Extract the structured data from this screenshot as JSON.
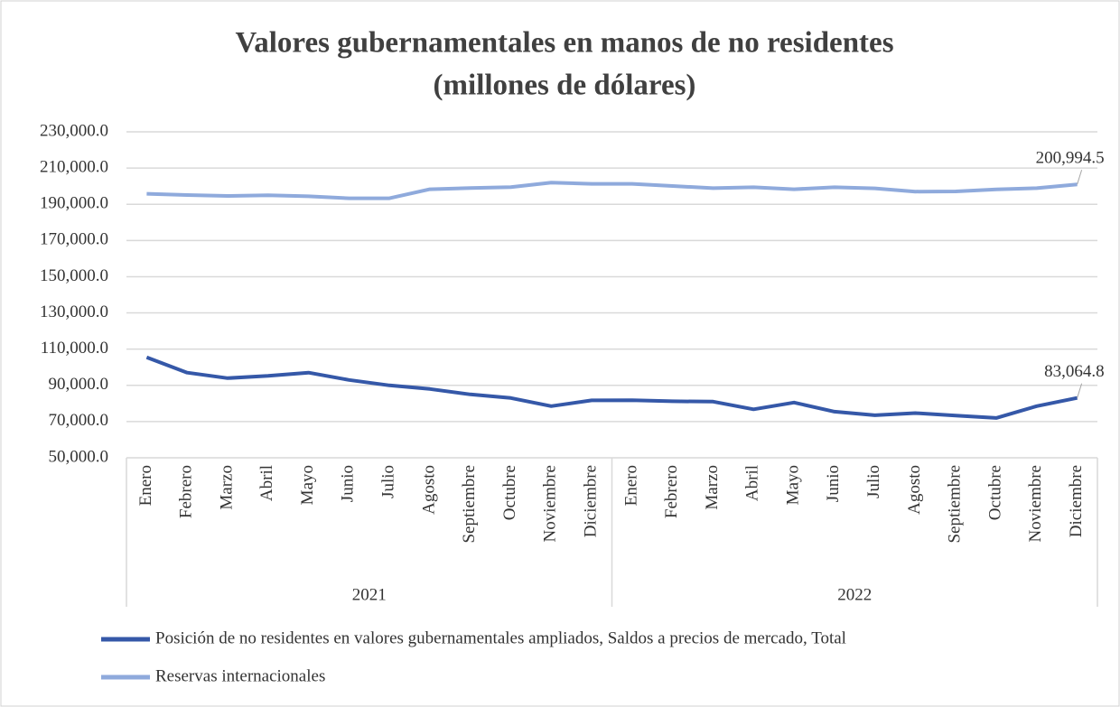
{
  "chart_data": {
    "type": "line",
    "title": "Valores gubernamentales en manos de no residentes",
    "subtitle": "(millones de dólares)",
    "categories": [
      "Enero",
      "Febrero",
      "Marzo",
      "Abril",
      "Mayo",
      "Junio",
      "Julio",
      "Agosto",
      "Septiembre",
      "Octubre",
      "Noviembre",
      "Diciembre",
      "Enero",
      "Febrero",
      "Marzo",
      "Abril",
      "Mayo",
      "Junio",
      "Julio",
      "Agosto",
      "Septiembre",
      "Octubre",
      "Noviembre",
      "Diciembre"
    ],
    "category_groups": [
      "2021",
      "2022"
    ],
    "series": [
      {
        "name": "Posición de no residentes en valores gubernamentales ampliados, Saldos a precios de mercado, Total",
        "color": "#3558a8",
        "values": [
          105500,
          97000,
          94000,
          95200,
          97000,
          93000,
          90000,
          88000,
          85000,
          83000,
          78500,
          81700,
          81800,
          81200,
          81000,
          76800,
          80500,
          75500,
          73500,
          74700,
          73300,
          72000,
          78500,
          83064.8
        ],
        "value_labels": [
          null,
          null,
          null,
          null,
          null,
          null,
          null,
          null,
          null,
          null,
          null,
          null,
          null,
          null,
          null,
          null,
          null,
          null,
          null,
          null,
          null,
          null,
          null,
          "83,064.8"
        ]
      },
      {
        "name": "Reservas internacionales",
        "color": "#8faadc",
        "values": [
          195800,
          195100,
          194600,
          195000,
          194400,
          193300,
          193300,
          198300,
          199000,
          199500,
          202000,
          201300,
          201300,
          200100,
          198900,
          199400,
          198300,
          199400,
          198800,
          197000,
          197100,
          198200,
          198900,
          200994.5
        ],
        "value_labels": [
          null,
          null,
          null,
          null,
          null,
          null,
          null,
          null,
          null,
          null,
          null,
          null,
          null,
          null,
          null,
          null,
          null,
          null,
          null,
          null,
          null,
          null,
          null,
          "200,994.5"
        ]
      }
    ],
    "ylim": [
      50000,
      230000
    ],
    "yticks": [
      {
        "value": 50000,
        "label": "50,000.0"
      },
      {
        "value": 70000,
        "label": "70,000.0"
      },
      {
        "value": 90000,
        "label": "90,000.0"
      },
      {
        "value": 110000,
        "label": "110,000.0"
      },
      {
        "value": 130000,
        "label": "130,000.0"
      },
      {
        "value": 150000,
        "label": "150,000.0"
      },
      {
        "value": 170000,
        "label": "170,000.0"
      },
      {
        "value": 190000,
        "label": "190,000.0"
      },
      {
        "value": 210000,
        "label": "210,000.0"
      },
      {
        "value": 230000,
        "label": "230,000.0"
      }
    ],
    "grid": true,
    "legend": "bottom"
  }
}
